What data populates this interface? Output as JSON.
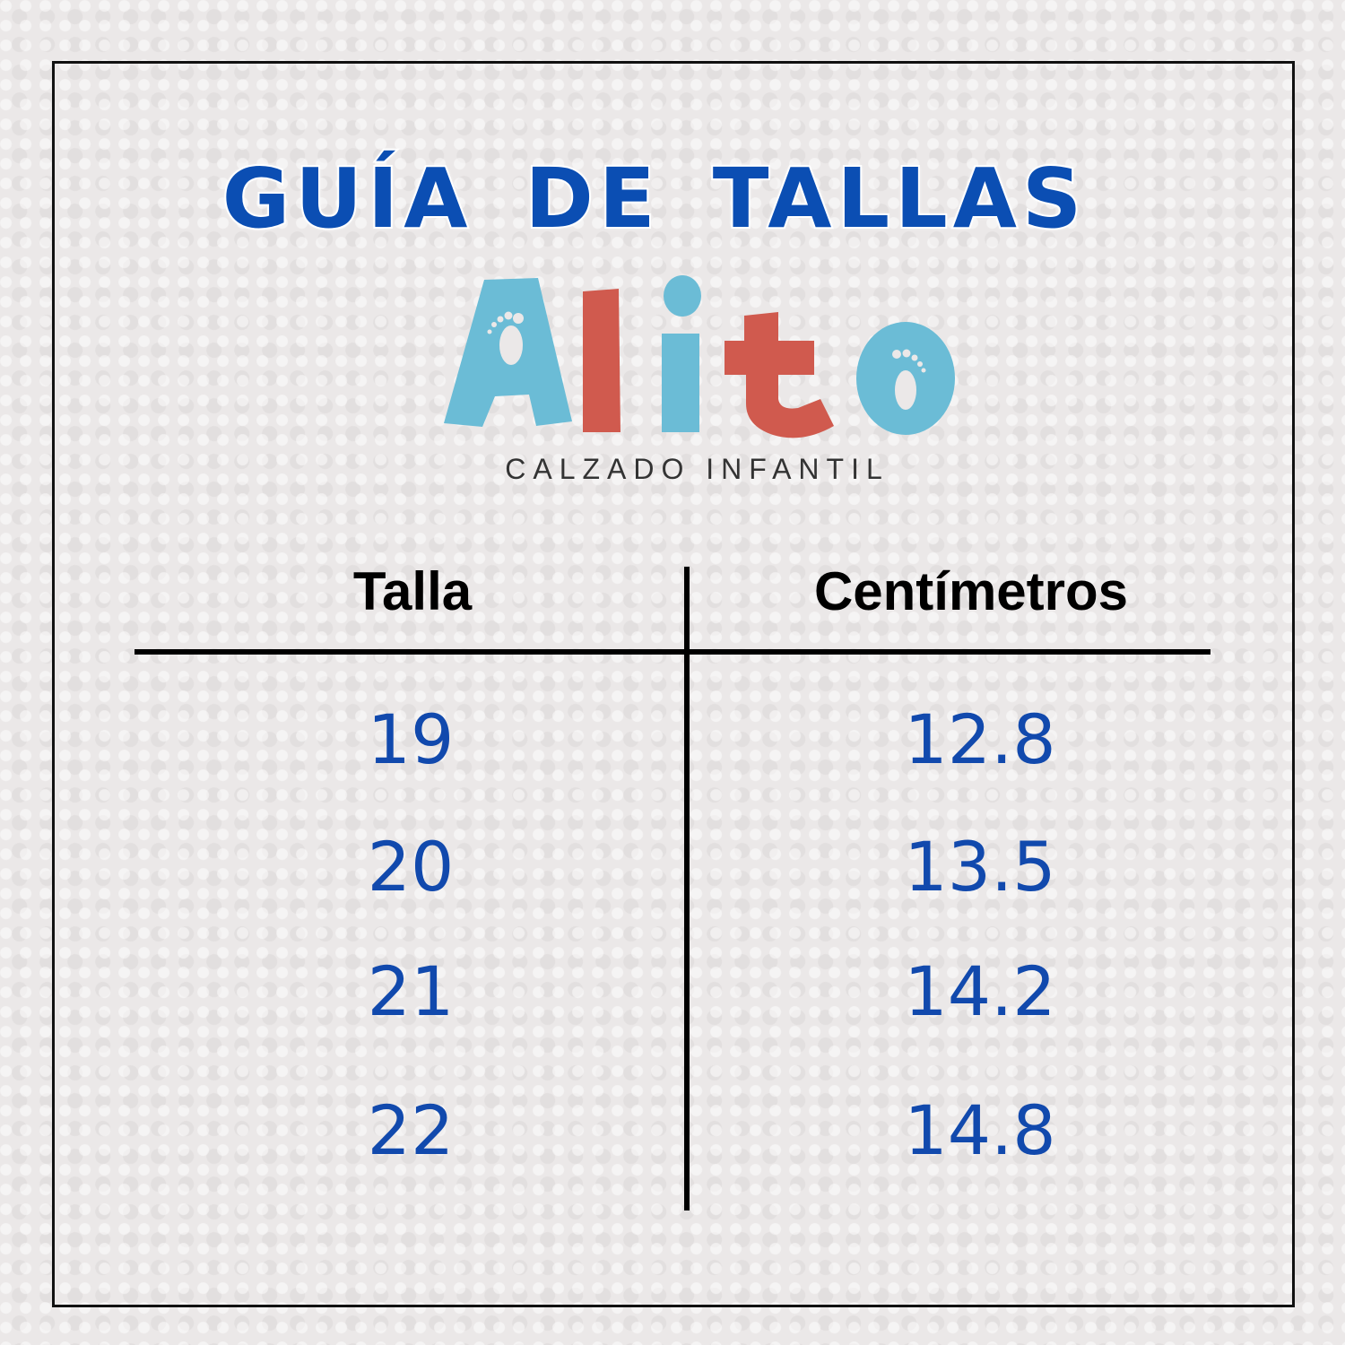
{
  "title": "GUÍA DE TALLAS",
  "logo": {
    "text": "Alito",
    "subtitle": "CALZADO INFANTIL",
    "colors": {
      "blue": "#6bbcd6",
      "red": "#d05a4e"
    }
  },
  "colors": {
    "title": "#0b4eb3",
    "values": "#1149ad"
  },
  "table": {
    "headers": [
      "Talla",
      "Centímetros"
    ],
    "rows": [
      [
        "19",
        "12.8"
      ],
      [
        "20",
        "13.5"
      ],
      [
        "21",
        "14.2"
      ],
      [
        "22",
        "14.8"
      ]
    ]
  }
}
